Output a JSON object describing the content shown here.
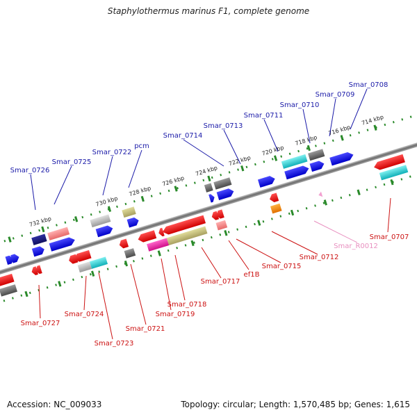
{
  "title": "Staphylothermus marinus F1, complete genome",
  "footer": {
    "accession": "Accession: NC_009033",
    "topology": "Topology: circular; Length: 1,570,485 bp; Genes: 1,615"
  },
  "colors": {
    "top_label": "#1a1aa8",
    "bottom_label": "#cc1111",
    "rna_label": "#e88fbf",
    "backbone": "#8a8a8a",
    "dots": "#2a8a2a"
  },
  "ticks": [
    "714 kbp",
    "716 kbp",
    "718 kbp",
    "720 kbp",
    "722 kbp",
    "724 kbp",
    "726 kbp",
    "728 kbp",
    "730 kbp",
    "732 kbp"
  ],
  "labels": {
    "top": [
      "Smar_0708",
      "Smar_0709",
      "Smar_0710",
      "Smar_0711",
      "Smar_0713",
      "Smar_0714",
      "pcm",
      "Smar_0722",
      "Smar_0725",
      "Smar_0726"
    ],
    "bottom": [
      "Smar_0707",
      "Smar_R0012",
      "Smar_0712",
      "Smar_0715",
      "ef1B",
      "Smar_0717",
      "Smar_0718",
      "Smar_0719",
      "Smar_0721",
      "Smar_0723",
      "Smar_0724",
      "Smar_0727"
    ]
  }
}
